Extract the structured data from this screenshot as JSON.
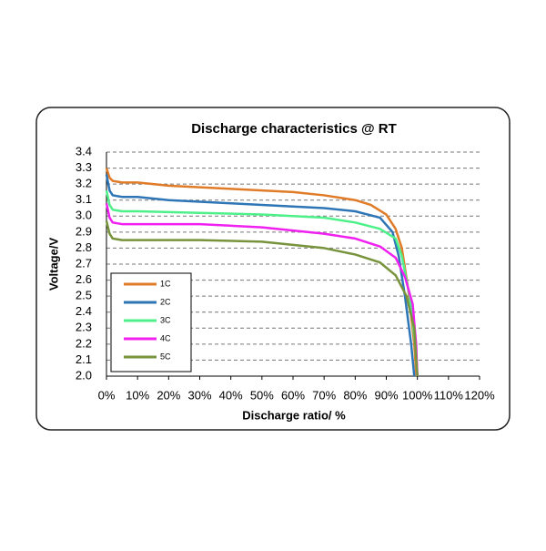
{
  "chart_data": {
    "type": "line",
    "title": "Discharge characteristics @ RT",
    "xlabel": "Discharge ratio/ %",
    "ylabel": "Voltage/V",
    "xlim": [
      0,
      120
    ],
    "ylim": [
      2.0,
      3.4
    ],
    "xticks": [
      {
        "value": 0,
        "label": "0%"
      },
      {
        "value": 10,
        "label": "10%"
      },
      {
        "value": 20,
        "label": "20%"
      },
      {
        "value": 30,
        "label": "30%"
      },
      {
        "value": 40,
        "label": "40%"
      },
      {
        "value": 50,
        "label": "50%"
      },
      {
        "value": 60,
        "label": "60%"
      },
      {
        "value": 70,
        "label": "70%"
      },
      {
        "value": 80,
        "label": "80%"
      },
      {
        "value": 90,
        "label": "90%"
      },
      {
        "value": 100,
        "label": "100%"
      },
      {
        "value": 110,
        "label": "110%"
      },
      {
        "value": 120,
        "label": "120%"
      }
    ],
    "yticks": [
      {
        "value": 2,
        "label": "2.0"
      },
      2.1,
      2.2,
      2.3,
      2.4,
      2.5,
      2.6,
      2.7,
      2.8,
      2.9,
      {
        "value": 3,
        "label": "3.0"
      },
      3.1,
      3.2,
      3.3,
      3.4
    ],
    "grid": true,
    "legend": "lower left",
    "series": [
      {
        "name": "1C",
        "color": "#e07b28",
        "x": [
          0,
          1,
          2,
          5,
          10,
          20,
          30,
          40,
          50,
          60,
          70,
          80,
          85,
          90,
          93,
          95,
          97,
          99,
          99.7
        ],
        "values": [
          3.3,
          3.24,
          3.22,
          3.21,
          3.21,
          3.19,
          3.18,
          3.17,
          3.16,
          3.15,
          3.13,
          3.1,
          3.07,
          3.01,
          2.92,
          2.8,
          2.55,
          2.2,
          2.0
        ]
      },
      {
        "name": "2C",
        "color": "#2e75b6",
        "x": [
          0,
          1,
          2,
          5,
          10,
          20,
          30,
          40,
          50,
          60,
          70,
          80,
          88,
          92,
          94,
          96,
          98,
          99
        ],
        "values": [
          3.26,
          3.16,
          3.13,
          3.12,
          3.12,
          3.1,
          3.09,
          3.08,
          3.07,
          3.06,
          3.05,
          3.03,
          2.99,
          2.9,
          2.75,
          2.5,
          2.2,
          2.0
        ]
      },
      {
        "name": "3C",
        "color": "#4ef08a",
        "x": [
          0,
          1,
          2,
          5,
          10,
          30,
          50,
          60,
          70,
          80,
          88,
          93,
          95,
          97.5,
          99.3,
          100
        ],
        "values": [
          3.16,
          3.07,
          3.04,
          3.03,
          3.03,
          3.02,
          3.01,
          3.0,
          2.99,
          2.96,
          2.92,
          2.86,
          2.75,
          2.5,
          2.2,
          2.0
        ]
      },
      {
        "name": "4C",
        "color": "#f020f0",
        "x": [
          0,
          1,
          2,
          5,
          10,
          30,
          50,
          60,
          70,
          80,
          88,
          93,
          96,
          98.5,
          99.6,
          100
        ],
        "values": [
          3.08,
          2.99,
          2.96,
          2.95,
          2.95,
          2.95,
          2.93,
          2.91,
          2.89,
          2.86,
          2.81,
          2.74,
          2.62,
          2.45,
          2.2,
          2.0
        ]
      },
      {
        "name": "5C",
        "color": "#77933c",
        "x": [
          0,
          1,
          2,
          5,
          10,
          30,
          50,
          60,
          70,
          80,
          88,
          93,
          96.5,
          99,
          100
        ],
        "values": [
          2.97,
          2.89,
          2.86,
          2.85,
          2.85,
          2.85,
          2.84,
          2.82,
          2.8,
          2.76,
          2.71,
          2.63,
          2.5,
          2.3,
          2.0
        ]
      }
    ]
  }
}
